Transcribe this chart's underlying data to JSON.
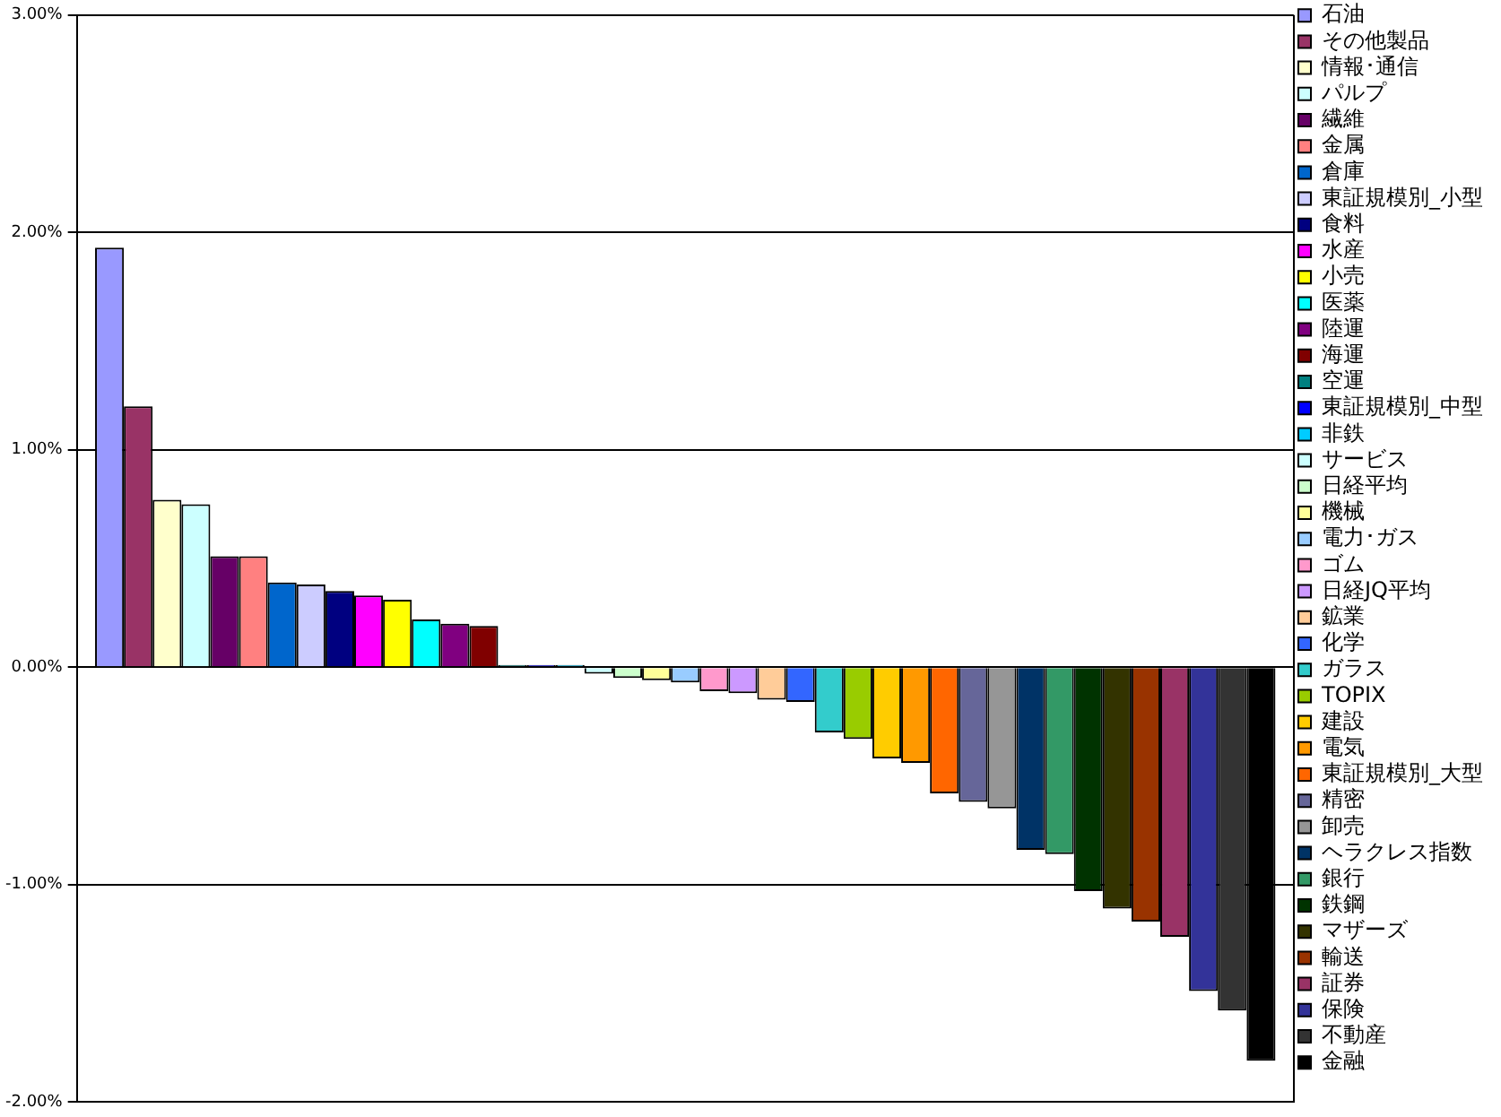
{
  "chart_data": {
    "type": "bar",
    "categories": [
      null
    ],
    "series": [
      {
        "name": "石油",
        "color": "#9999ff",
        "values": [
          1.93
        ]
      },
      {
        "name": "その他製品",
        "color": "#993366",
        "values": [
          1.2
        ]
      },
      {
        "name": "情報･通信",
        "color": "#ffffcc",
        "values": [
          0.77
        ]
      },
      {
        "name": "パルプ",
        "color": "#ccffff",
        "values": [
          0.75
        ]
      },
      {
        "name": "繊維",
        "color": "#660066",
        "values": [
          0.51
        ]
      },
      {
        "name": "金属",
        "color": "#ff8080",
        "values": [
          0.51
        ]
      },
      {
        "name": "倉庫",
        "color": "#0066cc",
        "values": [
          0.39
        ]
      },
      {
        "name": "東証規模別_小型",
        "color": "#ccccff",
        "values": [
          0.38
        ]
      },
      {
        "name": "食料",
        "color": "#000080",
        "values": [
          0.35
        ]
      },
      {
        "name": "水産",
        "color": "#ff00ff",
        "values": [
          0.33
        ]
      },
      {
        "name": "小売",
        "color": "#ffff00",
        "values": [
          0.31
        ]
      },
      {
        "name": "医薬",
        "color": "#00ffff",
        "values": [
          0.22
        ]
      },
      {
        "name": "陸運",
        "color": "#800080",
        "values": [
          0.2
        ]
      },
      {
        "name": "海運",
        "color": "#800000",
        "values": [
          0.19
        ]
      },
      {
        "name": "空運",
        "color": "#008080",
        "values": [
          0.01
        ]
      },
      {
        "name": "東証規模別_中型",
        "color": "#0000ff",
        "values": [
          0.01
        ]
      },
      {
        "name": "非鉄",
        "color": "#00ccff",
        "values": [
          0.01
        ]
      },
      {
        "name": "サービス",
        "color": "#ccffff",
        "values": [
          -0.03
        ]
      },
      {
        "name": "日経平均",
        "color": "#ccffcc",
        "values": [
          -0.05
        ]
      },
      {
        "name": "機械",
        "color": "#ffff99",
        "values": [
          -0.06
        ]
      },
      {
        "name": "電力･ガス",
        "color": "#99ccff",
        "values": [
          -0.07
        ]
      },
      {
        "name": "ゴム",
        "color": "#ff99cc",
        "values": [
          -0.11
        ]
      },
      {
        "name": "日経JQ平均",
        "color": "#cc99ff",
        "values": [
          -0.12
        ]
      },
      {
        "name": "鉱業",
        "color": "#ffcc99",
        "values": [
          -0.15
        ]
      },
      {
        "name": "化学",
        "color": "#3366ff",
        "values": [
          -0.16
        ]
      },
      {
        "name": "ガラス",
        "color": "#33cccc",
        "values": [
          -0.3
        ]
      },
      {
        "name": "TOPIX",
        "color": "#99cc00",
        "values": [
          -0.33
        ]
      },
      {
        "name": "建設",
        "color": "#ffcc00",
        "values": [
          -0.42
        ]
      },
      {
        "name": "電気",
        "color": "#ff9900",
        "values": [
          -0.44
        ]
      },
      {
        "name": "東証規模別_大型",
        "color": "#ff6600",
        "values": [
          -0.58
        ]
      },
      {
        "name": "精密",
        "color": "#666699",
        "values": [
          -0.62
        ]
      },
      {
        "name": "卸売",
        "color": "#969696",
        "values": [
          -0.65
        ]
      },
      {
        "name": "ヘラクレス指数",
        "color": "#003366",
        "values": [
          -0.84
        ]
      },
      {
        "name": "銀行",
        "color": "#339966",
        "values": [
          -0.86
        ]
      },
      {
        "name": "鉄鋼",
        "color": "#003300",
        "values": [
          -1.03
        ]
      },
      {
        "name": "マザーズ",
        "color": "#333300",
        "values": [
          -1.11
        ]
      },
      {
        "name": "輸送",
        "color": "#993300",
        "values": [
          -1.17
        ]
      },
      {
        "name": "証券",
        "color": "#993366",
        "values": [
          -1.24
        ]
      },
      {
        "name": "保険",
        "color": "#333399",
        "values": [
          -1.49
        ]
      },
      {
        "name": "不動産",
        "color": "#333333",
        "values": [
          -1.58
        ]
      },
      {
        "name": "金融",
        "color": "#000000",
        "values": [
          -1.81
        ]
      }
    ],
    "ylim": [
      -2,
      3
    ],
    "yticks": [
      {
        "value": -2,
        "label": "-2.00%"
      },
      {
        "value": -1,
        "label": "-1.00%"
      },
      {
        "value": 0,
        "label": "0.00%"
      },
      {
        "value": 1,
        "label": "1.00%"
      },
      {
        "value": 2,
        "label": "2.00%"
      },
      {
        "value": 3,
        "label": "3.00%"
      }
    ],
    "grid": "y",
    "legend": "right",
    "tick_labels": "y"
  }
}
